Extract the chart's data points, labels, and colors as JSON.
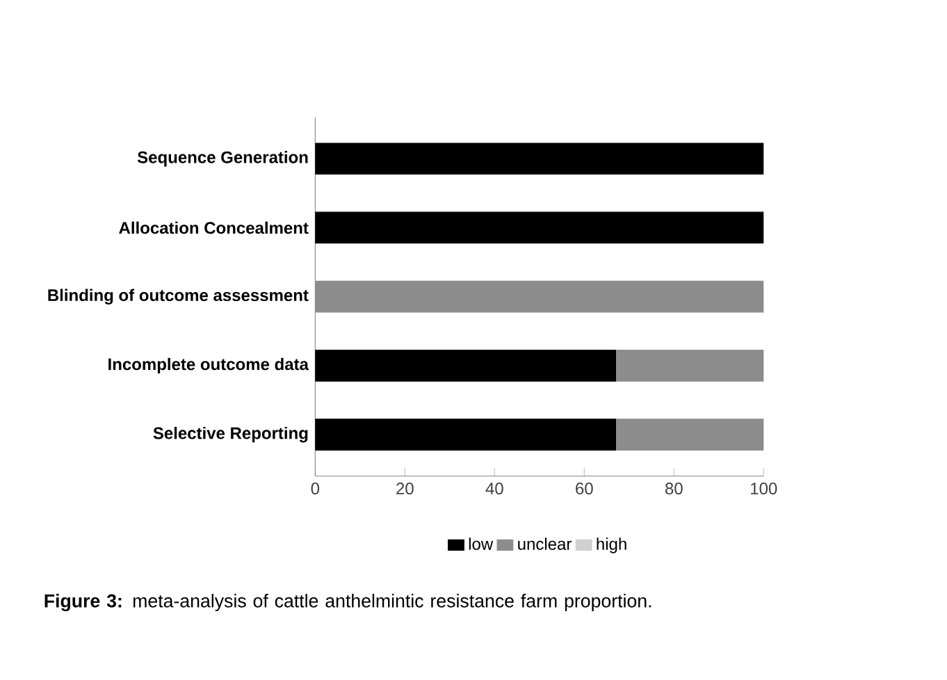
{
  "chart_data": {
    "type": "bar",
    "orientation": "horizontal",
    "stacked": true,
    "categories": [
      "Sequence Generation",
      "Allocation Concealment",
      "Blinding of outcome assessment",
      "Incomplete outcome data",
      "Selective Reporting"
    ],
    "series": [
      {
        "name": "low",
        "color": "#000000",
        "values": [
          100,
          100,
          0,
          67,
          67
        ]
      },
      {
        "name": "unclear",
        "color": "#8c8c8c",
        "values": [
          0,
          0,
          100,
          33,
          33
        ]
      },
      {
        "name": "high",
        "color": "#d0d0d0",
        "values": [
          0,
          0,
          0,
          0,
          0
        ]
      }
    ],
    "xlim": [
      0,
      100
    ],
    "xticks": [
      0,
      20,
      40,
      60,
      80,
      100
    ],
    "grid": false,
    "legend": "bottom",
    "annotations": [
      "**Figure 3:** meta-analysis of cattle anthelmintic resistance farm proportion."
    ]
  }
}
